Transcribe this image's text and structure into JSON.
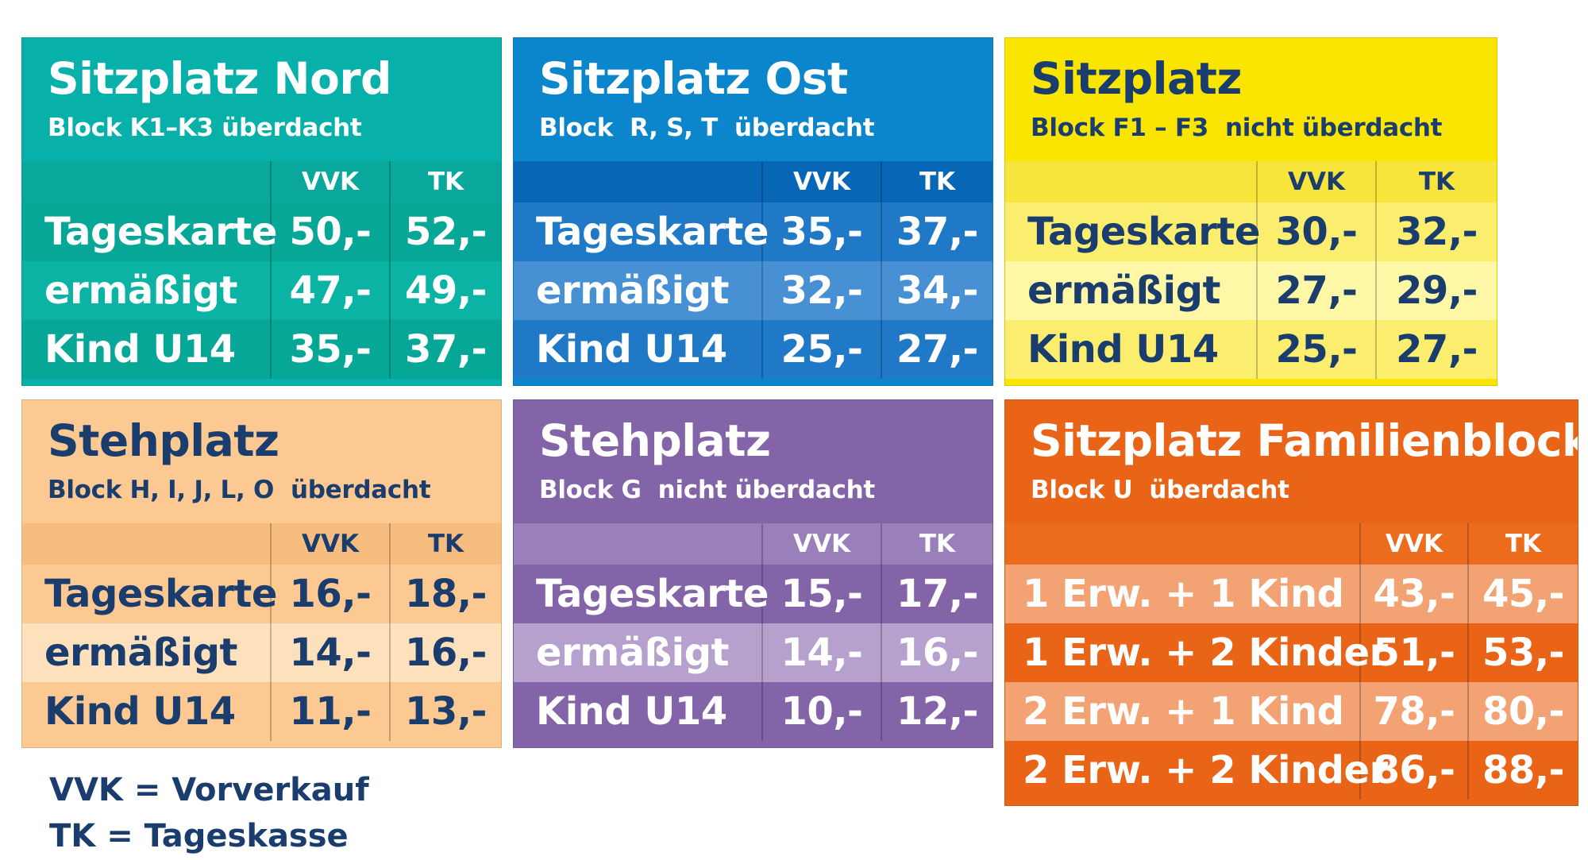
{
  "cards": [
    {
      "id": "sitzplatz-nord",
      "title": "Sitzplatz Nord",
      "subtitle": "Block K1–K3 überdacht",
      "columns": [
        "VVK",
        "TK"
      ],
      "colors": {
        "head": "#07b0a8",
        "colhead": "#0aa79c",
        "rows": [
          "#07a797",
          "#0ab3a3",
          "#07a797"
        ],
        "title": "#ffffff",
        "text": "#ffffff"
      },
      "rows": [
        {
          "label": "Tageskarte",
          "vvk": "50,-",
          "tk": "52,-"
        },
        {
          "label": "ermäßigt",
          "vvk": "47,-",
          "tk": "49,-"
        },
        {
          "label": "Kind U14",
          "vvk": "35,-",
          "tk": "37,-"
        }
      ]
    },
    {
      "id": "sitzplatz-ost",
      "title": "Sitzplatz Ost",
      "subtitle": "Block  R, S, T  überdacht",
      "columns": [
        "VVK",
        "TK"
      ],
      "colors": {
        "head": "#0b86cc",
        "colhead": "#0766b6",
        "rows": [
          "#1f79c6",
          "#4790d3",
          "#1f79c6"
        ],
        "title": "#ffffff",
        "text": "#ffffff"
      },
      "rows": [
        {
          "label": "Tageskarte",
          "vvk": "35,-",
          "tk": "37,-"
        },
        {
          "label": "ermäßigt",
          "vvk": "32,-",
          "tk": "34,-"
        },
        {
          "label": "Kind U14",
          "vvk": "25,-",
          "tk": "27,-"
        }
      ]
    },
    {
      "id": "sitzplatz-f",
      "title": "Sitzplatz",
      "subtitle": "Block F1 – F3  nicht überdacht",
      "columns": [
        "VVK",
        "TK"
      ],
      "colors": {
        "head": "#f9e500",
        "colhead": "#f8e53c",
        "rows": [
          "#fbee6e",
          "#fdf7a6",
          "#fbee6e"
        ],
        "title": "#1a3d6e",
        "text": "#1a3d6e"
      },
      "rows": [
        {
          "label": "Tageskarte",
          "vvk": "30,-",
          "tk": "32,-"
        },
        {
          "label": "ermäßigt",
          "vvk": "27,-",
          "tk": "29,-"
        },
        {
          "label": "Kind U14",
          "vvk": "25,-",
          "tk": "27,-"
        }
      ]
    },
    {
      "id": "stehplatz-h",
      "title": "Stehplatz",
      "subtitle": "Block H, I, J, L, O  überdacht",
      "columns": [
        "VVK",
        "TK"
      ],
      "colors": {
        "head": "#fbc991",
        "colhead": "#f7bd7f",
        "rows": [
          "#fbc991",
          "#fde1bc",
          "#fbc991"
        ],
        "title": "#1a3d6e",
        "text": "#1a3d6e"
      },
      "rows": [
        {
          "label": "Tageskarte",
          "vvk": "16,-",
          "tk": "18,-"
        },
        {
          "label": "ermäßigt",
          "vvk": "14,-",
          "tk": "16,-"
        },
        {
          "label": "Kind U14",
          "vvk": "11,-",
          "tk": "13,-"
        }
      ]
    },
    {
      "id": "stehplatz-g",
      "title": "Stehplatz",
      "subtitle": "Block G  nicht überdacht",
      "columns": [
        "VVK",
        "TK"
      ],
      "colors": {
        "head": "#8464a8",
        "colhead": "#9a80bb",
        "rows": [
          "#8464a8",
          "#b5a0ce",
          "#8464a8"
        ],
        "title": "#ffffff",
        "text": "#ffffff"
      },
      "rows": [
        {
          "label": "Tageskarte",
          "vvk": "15,-",
          "tk": "17,-"
        },
        {
          "label": "ermäßigt",
          "vvk": "14,-",
          "tk": "16,-"
        },
        {
          "label": "Kind U14",
          "vvk": "10,-",
          "tk": "12,-"
        }
      ]
    },
    {
      "id": "sitzplatz-familienblock",
      "title": "Sitzplatz Familienblock",
      "subtitle": "Block U  überdacht",
      "columns": [
        "VVK",
        "TK"
      ],
      "colors": {
        "head": "#ea6418",
        "colhead": "#ec6c1e",
        "rows": [
          "#f3a273",
          "#ea6418",
          "#f3a273",
          "#ea6418"
        ],
        "title": "#ffffff",
        "text": "#ffffff"
      },
      "rows": [
        {
          "label": "1 Erw. + 1 Kind",
          "vvk": "43,-",
          "tk": "45,-"
        },
        {
          "label": "1 Erw. + 2 Kinder",
          "vvk": "51,-",
          "tk": "53,-"
        },
        {
          "label": "2 Erw. + 1 Kind",
          "vvk": "78,-",
          "tk": "80,-"
        },
        {
          "label": "2 Erw. + 2 Kinder",
          "vvk": "86,-",
          "tk": "88,-"
        }
      ]
    }
  ],
  "legend": {
    "vvk": "VVK = Vorverkauf",
    "tk": "TK = Tageskasse"
  }
}
